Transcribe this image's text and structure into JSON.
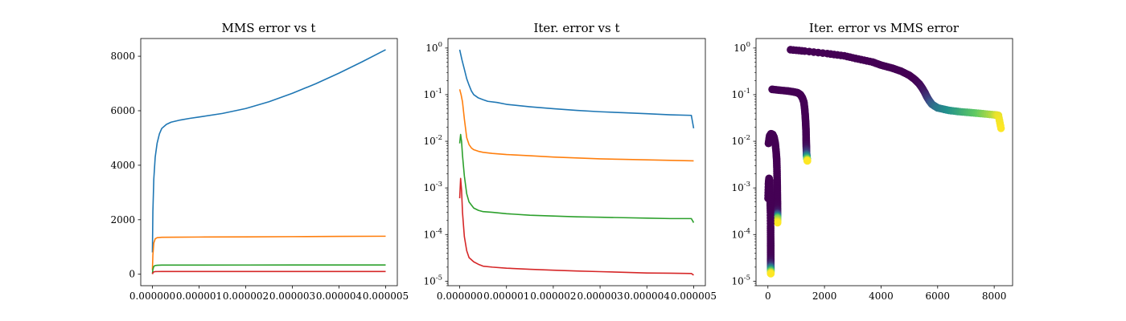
{
  "chart_data": [
    {
      "type": "line",
      "title": "MMS error vs t",
      "xlabel": "",
      "ylabel": "",
      "xlim": [
        -2.5e-07,
        5.25e-06
      ],
      "ylim": [
        -420,
        8650
      ],
      "x_ticks": [
        0,
        1e-06,
        2e-06,
        3e-06,
        4e-06,
        5e-06
      ],
      "x_tick_labels": [
        "0.000000",
        "0.000001",
        "0.000002",
        "0.000003",
        "0.000004",
        "0.000005"
      ],
      "y_ticks": [
        0,
        2000,
        4000,
        6000,
        8000
      ],
      "y_tick_labels": [
        "0",
        "2000",
        "4000",
        "6000",
        "8000"
      ],
      "y_scale": "linear",
      "grid": false,
      "series": [
        {
          "color": "#1f77b4",
          "x": [
            0,
            1e-08,
            3e-08,
            6e-08,
            1e-07,
            1.5e-07,
            2e-07,
            3e-07,
            4e-07,
            6e-07,
            8e-07,
            1e-06,
            1.5e-06,
            2e-06,
            2.5e-06,
            3e-06,
            3.5e-06,
            4e-06,
            4.5e-06,
            5e-06
          ],
          "y": [
            800,
            2300,
            3500,
            4300,
            4800,
            5150,
            5350,
            5500,
            5580,
            5660,
            5720,
            5770,
            5900,
            6080,
            6330,
            6640,
            6990,
            7380,
            7800,
            8240
          ]
        },
        {
          "color": "#ff7f0e",
          "x": [
            0,
            1e-08,
            3e-08,
            6e-08,
            1e-07,
            2e-07,
            5e-07,
            1e-06,
            2e-06,
            3e-06,
            4e-06,
            5e-06
          ],
          "y": [
            150,
            700,
            1150,
            1300,
            1340,
            1355,
            1360,
            1365,
            1372,
            1380,
            1388,
            1395
          ]
        },
        {
          "color": "#2ca02c",
          "x": [
            0,
            1e-08,
            3e-08,
            6e-08,
            1e-07,
            2e-07,
            5e-07,
            1e-06,
            2e-06,
            3e-06,
            4e-06,
            5e-06
          ],
          "y": [
            20,
            170,
            290,
            320,
            330,
            335,
            336,
            337,
            338,
            339,
            340,
            341
          ]
        },
        {
          "color": "#d62728",
          "x": [
            0,
            1e-08,
            3e-08,
            6e-08,
            1e-07,
            2e-07,
            5e-07,
            1e-06,
            2e-06,
            3e-06,
            4e-06,
            5e-06
          ],
          "y": [
            5,
            50,
            88,
            96,
            99,
            100,
            100,
            100,
            100,
            101,
            101,
            101
          ]
        }
      ]
    },
    {
      "type": "line",
      "title": "Iter. error vs t",
      "xlabel": "",
      "ylabel": "",
      "xlim": [
        -2.5e-07,
        5.25e-06
      ],
      "ylim": [
        8e-06,
        1.6
      ],
      "x_ticks": [
        0,
        1e-06,
        2e-06,
        3e-06,
        4e-06,
        5e-06
      ],
      "x_tick_labels": [
        "0.000000",
        "0.000001",
        "0.000002",
        "0.000003",
        "0.000004",
        "0.000005"
      ],
      "y_ticks": [
        1e-05,
        0.0001,
        0.001,
        0.01,
        0.1,
        1
      ],
      "y_tick_labels": [
        "10^-5",
        "10^-4",
        "10^-3",
        "10^-2",
        "10^-1",
        "10^0"
      ],
      "y_scale": "log",
      "grid": false,
      "series": [
        {
          "color": "#1f77b4",
          "x": [
            0,
            5e-08,
            1e-07,
            1.5e-07,
            2e-07,
            2.5e-07,
            3e-07,
            4e-07,
            5e-07,
            6e-07,
            8e-07,
            1e-06,
            1.5e-06,
            2e-06,
            2.5e-06,
            3e-06,
            3.5e-06,
            4e-06,
            4.5e-06,
            4.95e-06,
            5e-06
          ],
          "y": [
            0.92,
            0.55,
            0.35,
            0.22,
            0.16,
            0.12,
            0.1,
            0.085,
            0.078,
            0.072,
            0.068,
            0.062,
            0.055,
            0.05,
            0.046,
            0.043,
            0.041,
            0.039,
            0.037,
            0.036,
            0.019
          ]
        },
        {
          "color": "#ff7f0e",
          "x": [
            0,
            3e-08,
            6e-08,
            1e-07,
            1.5e-07,
            2e-07,
            2.5e-07,
            3e-07,
            4e-07,
            5e-07,
            7e-07,
            1e-06,
            1.5e-06,
            2e-06,
            2.5e-06,
            3e-06,
            3.5e-06,
            4e-06,
            4.5e-06,
            5e-06
          ],
          "y": [
            0.13,
            0.1,
            0.07,
            0.03,
            0.012,
            0.0085,
            0.0072,
            0.0066,
            0.0061,
            0.0058,
            0.0055,
            0.0052,
            0.0049,
            0.0046,
            0.0044,
            0.0042,
            0.0041,
            0.004,
            0.0039,
            0.0038
          ]
        },
        {
          "color": "#2ca02c",
          "x": [
            0,
            2e-08,
            4e-08,
            6e-08,
            1e-07,
            1.5e-07,
            2e-07,
            3e-07,
            4e-07,
            5e-07,
            7e-07,
            1e-06,
            1.5e-06,
            2e-06,
            2.5e-06,
            3e-06,
            3.5e-06,
            4e-06,
            4.5e-06,
            4.95e-06,
            5e-06
          ],
          "y": [
            0.009,
            0.014,
            0.01,
            0.005,
            0.0018,
            0.00075,
            0.0005,
            0.00037,
            0.00033,
            0.00031,
            0.0003,
            0.00028,
            0.00026,
            0.00025,
            0.00024,
            0.000235,
            0.00023,
            0.000225,
            0.00022,
            0.00022,
            0.00018
          ]
        },
        {
          "color": "#d62728",
          "x": [
            0,
            2e-08,
            4e-08,
            6e-08,
            1e-07,
            1.5e-07,
            2e-07,
            3e-07,
            4e-07,
            5e-07,
            7e-07,
            1e-06,
            1.5e-06,
            2e-06,
            2.5e-06,
            3e-06,
            3.5e-06,
            4e-06,
            4.5e-06,
            4.95e-06,
            5e-06
          ],
          "y": [
            0.0006,
            0.0016,
            0.0009,
            0.0003,
            9e-05,
            4.5e-05,
            3.2e-05,
            2.6e-05,
            2.3e-05,
            2.1e-05,
            2e-05,
            1.9e-05,
            1.8e-05,
            1.72e-05,
            1.65e-05,
            1.6e-05,
            1.55e-05,
            1.5e-05,
            1.48e-05,
            1.46e-05,
            1.35e-05
          ]
        }
      ]
    },
    {
      "type": "scatter",
      "title": "Iter. error vs MMS error",
      "xlabel": "",
      "ylabel": "",
      "xlim": [
        -420,
        8650
      ],
      "ylim": [
        8e-06,
        1.6
      ],
      "x_ticks": [
        0,
        2000,
        4000,
        6000,
        8000
      ],
      "x_tick_labels": [
        "0",
        "2000",
        "4000",
        "6000",
        "8000"
      ],
      "y_ticks": [
        1e-05,
        0.0001,
        0.001,
        0.01,
        0.1,
        1
      ],
      "y_tick_labels": [
        "10^-5",
        "10^-4",
        "10^-3",
        "10^-2",
        "10^-1",
        "10^0"
      ],
      "y_scale": "log",
      "grid": false,
      "colormap": [
        "#440154",
        "#3b528b",
        "#21918c",
        "#5ec962",
        "#fde725"
      ],
      "color_by": "time",
      "series": [
        {
          "x": [
            800,
            1300,
            2100,
            2700,
            3200,
            3700,
            4000,
            4400,
            4700,
            5000,
            5200,
            5350,
            5450,
            5550,
            5620,
            5700,
            5800,
            6000,
            6400,
            6800,
            7200,
            7600,
            8000,
            8150,
            8240
          ],
          "y": [
            0.92,
            0.86,
            0.76,
            0.68,
            0.58,
            0.5,
            0.43,
            0.37,
            0.32,
            0.26,
            0.21,
            0.17,
            0.14,
            0.11,
            0.09,
            0.075,
            0.062,
            0.052,
            0.046,
            0.043,
            0.041,
            0.039,
            0.037,
            0.036,
            0.019
          ],
          "c": [
            0,
            0,
            0,
            0,
            0,
            0,
            0,
            0,
            0,
            0,
            0,
            0.02,
            0.04,
            0.08,
            0.14,
            0.2,
            0.3,
            0.4,
            0.5,
            0.6,
            0.7,
            0.8,
            0.9,
            0.97,
            1.0
          ]
        },
        {
          "x": [
            150,
            400,
            700,
            900,
            1050,
            1150,
            1220,
            1270,
            1300,
            1320,
            1335,
            1345,
            1352,
            1356,
            1360,
            1365,
            1372,
            1380,
            1388,
            1395
          ],
          "y": [
            0.13,
            0.125,
            0.12,
            0.115,
            0.11,
            0.1,
            0.085,
            0.07,
            0.05,
            0.035,
            0.025,
            0.018,
            0.012,
            0.009,
            0.0072,
            0.0055,
            0.0049,
            0.0044,
            0.0041,
            0.0038
          ],
          "c": [
            0,
            0,
            0,
            0,
            0,
            0,
            0,
            0,
            0,
            0,
            0,
            0,
            0,
            0.01,
            0.05,
            0.2,
            0.4,
            0.6,
            0.8,
            1.0
          ]
        },
        {
          "x": [
            20,
            60,
            110,
            170,
            220,
            260,
            290,
            310,
            320,
            326,
            330,
            333,
            335,
            336,
            337,
            338,
            339,
            340,
            341
          ],
          "y": [
            0.009,
            0.013,
            0.0145,
            0.014,
            0.012,
            0.009,
            0.006,
            0.004,
            0.0025,
            0.0015,
            0.001,
            0.0007,
            0.0005,
            0.00037,
            0.0003,
            0.00026,
            0.00024,
            0.00022,
            0.00018
          ],
          "c": [
            0,
            0,
            0,
            0,
            0,
            0,
            0,
            0,
            0,
            0,
            0,
            0,
            0,
            0.01,
            0.08,
            0.3,
            0.55,
            0.8,
            1.0
          ]
        },
        {
          "x": [
            5,
            20,
            40,
            55,
            70,
            82,
            90,
            95,
            97,
            99,
            99.5,
            100,
            100,
            100,
            100.5,
            101,
            101,
            101
          ],
          "y": [
            0.0006,
            0.0012,
            0.0016,
            0.0014,
            0.0009,
            0.0005,
            0.0003,
            0.00015,
            9e-05,
            6e-05,
            4.5e-05,
            3.2e-05,
            2.6e-05,
            2.1e-05,
            1.9e-05,
            1.72e-05,
            1.6e-05,
            1.45e-05
          ],
          "c": [
            0,
            0,
            0,
            0,
            0,
            0,
            0,
            0,
            0,
            0,
            0,
            0.01,
            0.05,
            0.2,
            0.4,
            0.6,
            0.8,
            1.0
          ]
        }
      ]
    }
  ]
}
